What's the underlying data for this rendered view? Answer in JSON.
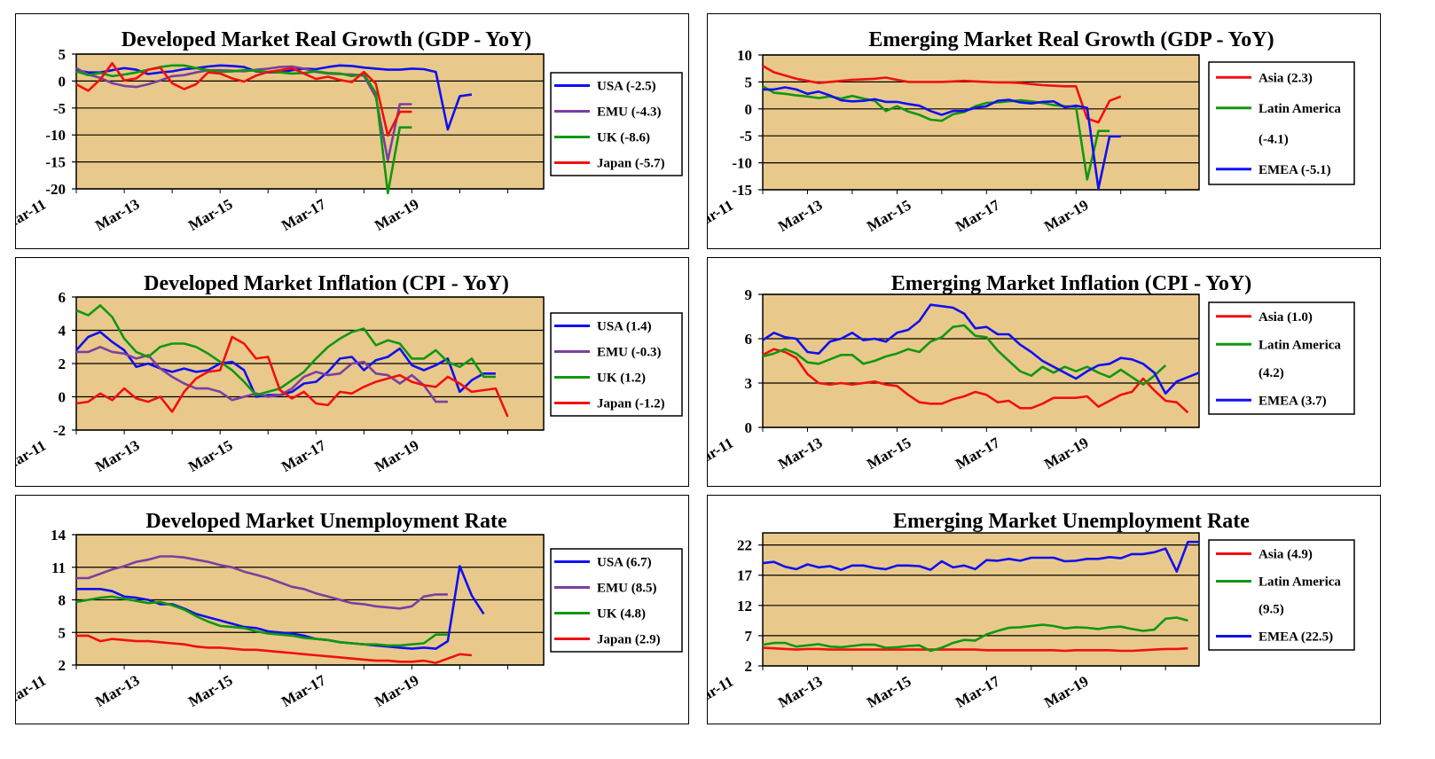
{
  "colors": {
    "plot_bg": "#E9C98B",
    "usa": "#1010F0",
    "emu": "#7B3FA0",
    "uk": "#109810",
    "japan": "#F01010",
    "asia": "#F01010",
    "latam": "#109810",
    "emea": "#1010F0"
  },
  "chart_data": [
    {
      "type": "line",
      "title": "Developed Market Real Growth (GDP - YoY)",
      "x_tick_labels": [
        "Mar-11",
        "Mar-13",
        "Mar-15",
        "Mar-17",
        "Mar-19"
      ],
      "n_points": 40,
      "ylim": [
        -20,
        5
      ],
      "yticks": [
        5,
        0,
        -5,
        -10,
        -15,
        -20
      ],
      "grid": true,
      "legend_position": "right",
      "series": [
        {
          "name": "USA (-2.5)",
          "color_key": "usa",
          "values": [
            2,
            1.6,
            1.6,
            2,
            2.4,
            2.1,
            1.3,
            1.6,
            1.8,
            2.2,
            2.4,
            2.7,
            2.9,
            2.8,
            2.6,
            1.8,
            1.6,
            1.6,
            2,
            2.3,
            2.2,
            2.6,
            2.9,
            2.8,
            2.5,
            2.3,
            2.1,
            2.1,
            2.3,
            2.2,
            1.7,
            -9,
            -2.8,
            -2.5
          ]
        },
        {
          "name": "EMU (-4.3)",
          "color_key": "emu",
          "values": [
            2.4,
            1.2,
            0.6,
            -0.4,
            -0.9,
            -1.1,
            -0.6,
            0.1,
            0.9,
            1.1,
            1.6,
            2,
            2,
            1.9,
            1.8,
            2.1,
            2.3,
            2.6,
            2.7,
            2.3,
            1.7,
            1.4,
            1.3,
            1.2,
            1,
            -3,
            -14.7,
            -4.3,
            -4.3
          ]
        },
        {
          "name": "UK (-8.6)",
          "color_key": "uk",
          "values": [
            1.8,
            1.1,
            1.5,
            0.9,
            1.2,
            1.6,
            2.1,
            2.6,
            2.9,
            2.9,
            2.4,
            2,
            1.7,
            1.8,
            2,
            1.9,
            1.7,
            1.6,
            1.4,
            1.5,
            1.8,
            1.5,
            1.4,
            0.9,
            1.3,
            -2.2,
            -20.8,
            -8.6,
            -8.6
          ]
        },
        {
          "name": "Japan (-5.7)",
          "color_key": "japan",
          "values": [
            -0.6,
            -1.8,
            0.3,
            3.3,
            0.1,
            0.5,
            2.1,
            2.5,
            -0.4,
            -1.5,
            -0.6,
            1.6,
            1.4,
            0.5,
            -0.1,
            1,
            1.7,
            2,
            2.4,
            1.4,
            0.4,
            0.8,
            0.2,
            -0.2,
            1.7,
            -0.5,
            -10.1,
            -5.7,
            -5.7
          ]
        }
      ]
    },
    {
      "type": "line",
      "title": "Emerging Market Real Growth (GDP - YoY)",
      "x_tick_labels": [
        "Mar-11",
        "Mar-13",
        "Mar-15",
        "Mar-17",
        "Mar-19"
      ],
      "n_points": 40,
      "ylim": [
        -15,
        10
      ],
      "yticks": [
        10,
        5,
        0,
        -5,
        -10,
        -15
      ],
      "grid": true,
      "legend_position": "right",
      "series": [
        {
          "name": "Asia (2.3)",
          "color_key": "asia",
          "values": [
            8,
            6.8,
            6.2,
            5.6,
            5.2,
            4.8,
            5,
            5.2,
            5.4,
            5.5,
            5.6,
            5.8,
            5.4,
            5,
            5,
            5,
            5,
            5.1,
            5.2,
            5.1,
            5,
            4.9,
            4.9,
            4.8,
            4.6,
            4.4,
            4.3,
            4.2,
            4.2,
            -1.8,
            -2.5,
            1.5,
            2.3
          ]
        },
        {
          "name": "Latin America (-4.1)",
          "color_key": "latam",
          "values": [
            4.2,
            3,
            2.8,
            2.5,
            2.3,
            2,
            2.3,
            1.9,
            2.4,
            1.9,
            1.5,
            -0.4,
            0.5,
            -0.5,
            -1.1,
            -2,
            -2.2,
            -1,
            -0.6,
            0.5,
            1.1,
            1.2,
            1.4,
            1.6,
            1.4,
            1.1,
            0.7,
            0.5,
            0.4,
            -13.1,
            -4.1,
            -4.1
          ]
        },
        {
          "name": "EMEA (-5.1)",
          "color_key": "emea",
          "values": [
            3.6,
            3.6,
            4,
            3.6,
            2.8,
            3.2,
            2.5,
            1.6,
            1.4,
            1.5,
            1.8,
            1.3,
            1.3,
            0.9,
            0.6,
            -0.4,
            -1.1,
            -0.4,
            -0.4,
            0.2,
            0.5,
            1.5,
            1.7,
            1.2,
            1,
            1.3,
            1.4,
            0.3,
            0.6,
            0.2,
            -14.8,
            -5.1,
            -5.1
          ]
        }
      ]
    },
    {
      "type": "line",
      "title": "Developed Market Inflation (CPI - YoY)",
      "x_tick_labels": [
        "Mar-11",
        "Mar-13",
        "Mar-15",
        "Mar-17",
        "Mar-19"
      ],
      "n_points": 40,
      "ylim": [
        -2,
        6
      ],
      "yticks": [
        6,
        4,
        2,
        0,
        -2
      ],
      "grid": true,
      "legend_position": "right",
      "series": [
        {
          "name": "USA (1.4)",
          "color_key": "usa",
          "values": [
            2.8,
            3.6,
            3.9,
            3.3,
            2.8,
            1.8,
            2,
            1.7,
            1.5,
            1.7,
            1.5,
            1.6,
            2,
            2.1,
            1.6,
            0,
            0.1,
            0.1,
            0.3,
            0.8,
            0.9,
            1.5,
            2.3,
            2.4,
            1.6,
            2.2,
            2.4,
            2.9,
            1.9,
            1.6,
            1.9,
            2.3,
            0.3,
            1,
            1.4,
            1.4
          ]
        },
        {
          "name": "EMU (-0.3)",
          "color_key": "emu",
          "values": [
            2.7,
            2.7,
            3,
            2.7,
            2.6,
            2.3,
            2.5,
            1.7,
            1.2,
            0.8,
            0.5,
            0.5,
            0.3,
            -0.2,
            0,
            0.2,
            0,
            0.1,
            0.5,
            1.2,
            1.5,
            1.3,
            1.4,
            2,
            2.1,
            1.4,
            1.3,
            0.8,
            1.3,
            0.7,
            -0.3,
            -0.3
          ]
        },
        {
          "name": "UK (1.2)",
          "color_key": "uk",
          "values": [
            5.2,
            4.9,
            5.5,
            4.8,
            3.5,
            2.7,
            2.4,
            3,
            3.2,
            3.2,
            3,
            2.6,
            2.1,
            1.6,
            0.9,
            0.1,
            0.3,
            0.5,
            1,
            1.5,
            2.3,
            3,
            3.5,
            3.9,
            4.1,
            3.1,
            3.4,
            3.2,
            2.3,
            2.3,
            2.8,
            2.1,
            1.8,
            2.3,
            1.2,
            1.2
          ]
        },
        {
          "name": "Japan (-1.2)",
          "color_key": "japan",
          "values": [
            -0.4,
            -0.3,
            0.2,
            -0.2,
            0.5,
            -0.1,
            -0.3,
            0,
            -0.9,
            0.3,
            1.1,
            1.5,
            1.6,
            3.6,
            3.2,
            2.3,
            2.4,
            0.4,
            -0.1,
            0.3,
            -0.4,
            -0.5,
            0.3,
            0.2,
            0.6,
            0.9,
            1.1,
            1.3,
            0.9,
            0.7,
            0.6,
            1.2,
            0.8,
            0.3,
            0.4,
            0.5,
            -1.2
          ]
        }
      ]
    },
    {
      "type": "line",
      "title": "Emerging Market Inflation (CPI - YoY)",
      "x_tick_labels": [
        "Mar-11",
        "Mar-13",
        "Mar-15",
        "Mar-17",
        "Mar-19"
      ],
      "n_points": 40,
      "ylim": [
        0,
        9
      ],
      "yticks": [
        9,
        6,
        3,
        0
      ],
      "grid": true,
      "legend_position": "right",
      "series": [
        {
          "name": "Asia (1.0)",
          "color_key": "asia",
          "values": [
            4.9,
            5.3,
            5.1,
            4.7,
            3.6,
            3,
            2.9,
            3,
            2.9,
            3,
            3.1,
            2.9,
            2.8,
            2.2,
            1.7,
            1.6,
            1.6,
            1.9,
            2.1,
            2.4,
            2.2,
            1.7,
            1.8,
            1.3,
            1.3,
            1.6,
            2,
            2,
            2,
            2.1,
            1.4,
            1.8,
            2.2,
            2.4,
            3.3,
            2.5,
            1.8,
            1.7,
            1
          ]
        },
        {
          "name": "Latin America (4.2)",
          "color_key": "latam",
          "values": [
            4.8,
            5,
            5.3,
            5,
            4.4,
            4.3,
            4.6,
            4.9,
            4.9,
            4.3,
            4.5,
            4.8,
            5,
            5.3,
            5.1,
            5.8,
            6.1,
            6.8,
            6.9,
            6.2,
            6.1,
            5.2,
            4.5,
            3.8,
            3.5,
            4.1,
            3.7,
            4.1,
            3.8,
            4.1,
            3.7,
            3.4,
            3.9,
            3.4,
            2.9,
            3.5,
            4.2
          ]
        },
        {
          "name": "EMEA (3.7)",
          "color_key": "emea",
          "values": [
            5.9,
            6.4,
            6.1,
            6,
            5.1,
            5,
            5.8,
            6,
            6.4,
            5.9,
            6,
            5.8,
            6.4,
            6.6,
            7.2,
            8.3,
            8.2,
            8.1,
            7.7,
            6.7,
            6.8,
            6.3,
            6.3,
            5.6,
            5.1,
            4.5,
            4.1,
            3.7,
            3.3,
            3.8,
            4.2,
            4.3,
            4.7,
            4.6,
            4.3,
            3.7,
            2.3,
            3.1,
            3.4,
            3.7
          ]
        }
      ]
    },
    {
      "type": "line",
      "title": "Developed Market Unemployment Rate",
      "x_tick_labels": [
        "Mar-11",
        "Mar-13",
        "Mar-15",
        "Mar-17",
        "Mar-19"
      ],
      "n_points": 40,
      "ylim": [
        2,
        14
      ],
      "yticks": [
        14,
        11,
        8,
        5,
        2
      ],
      "grid": true,
      "legend_position": "right",
      "series": [
        {
          "name": "USA (6.7)",
          "color_key": "usa",
          "values": [
            9,
            9,
            9,
            8.8,
            8.3,
            8.2,
            8,
            7.6,
            7.6,
            7.2,
            6.7,
            6.4,
            6.1,
            5.8,
            5.5,
            5.4,
            5.1,
            5,
            4.9,
            4.7,
            4.4,
            4.3,
            4.1,
            4,
            3.9,
            3.8,
            3.7,
            3.6,
            3.5,
            3.6,
            3.5,
            4.2,
            11.1,
            8.4,
            6.7
          ]
        },
        {
          "name": "EMU (8.5)",
          "color_key": "emu",
          "values": [
            10,
            10,
            10.4,
            10.8,
            11.1,
            11.5,
            11.7,
            12,
            12,
            11.9,
            11.7,
            11.5,
            11.2,
            11,
            10.6,
            10.3,
            10,
            9.6,
            9.2,
            9,
            8.6,
            8.3,
            8,
            7.7,
            7.6,
            7.4,
            7.3,
            7.2,
            7.4,
            8.3,
            8.5,
            8.5
          ]
        },
        {
          "name": "UK (4.8)",
          "color_key": "uk",
          "values": [
            7.8,
            8,
            8.2,
            8.3,
            8.1,
            7.9,
            7.7,
            7.8,
            7.5,
            7.1,
            6.5,
            6,
            5.6,
            5.5,
            5.4,
            5.1,
            4.9,
            4.8,
            4.7,
            4.5,
            4.4,
            4.3,
            4.1,
            4,
            3.9,
            3.9,
            3.8,
            3.8,
            3.9,
            4,
            4.8,
            4.8
          ]
        },
        {
          "name": "Japan (2.9)",
          "color_key": "japan",
          "values": [
            4.7,
            4.7,
            4.2,
            4.4,
            4.3,
            4.2,
            4.2,
            4.1,
            4,
            3.9,
            3.7,
            3.6,
            3.6,
            3.5,
            3.4,
            3.4,
            3.3,
            3.2,
            3.1,
            3,
            2.9,
            2.8,
            2.7,
            2.6,
            2.5,
            2.4,
            2.4,
            2.3,
            2.3,
            2.4,
            2.2,
            2.6,
            3,
            2.9
          ]
        }
      ]
    },
    {
      "type": "line",
      "title": "Emerging Market Unemployment Rate",
      "x_tick_labels": [
        "Mar-11",
        "Mar-13",
        "Mar-15",
        "Mar-17",
        "Mar-19"
      ],
      "n_points": 40,
      "ylim": [
        2,
        24
      ],
      "yticks": [
        22,
        17,
        12,
        7,
        2
      ],
      "grid": true,
      "legend_position": "right",
      "series": [
        {
          "name": "Asia (4.9)",
          "color_key": "asia",
          "values": [
            5,
            4.9,
            4.8,
            4.7,
            4.8,
            4.8,
            4.7,
            4.7,
            4.7,
            4.7,
            4.7,
            4.7,
            4.7,
            4.7,
            4.7,
            4.7,
            4.7,
            4.7,
            4.7,
            4.7,
            4.6,
            4.6,
            4.6,
            4.6,
            4.6,
            4.6,
            4.6,
            4.5,
            4.6,
            4.6,
            4.6,
            4.6,
            4.5,
            4.5,
            4.6,
            4.7,
            4.8,
            4.8,
            4.9
          ]
        },
        {
          "name": "Latin America (9.5)",
          "color_key": "latam",
          "values": [
            5.5,
            5.8,
            5.8,
            5.2,
            5.4,
            5.6,
            5.2,
            5.1,
            5.3,
            5.5,
            5.5,
            5,
            5.1,
            5.3,
            5.4,
            4.5,
            5,
            5.8,
            6.3,
            6.2,
            7.2,
            7.8,
            8.3,
            8.4,
            8.6,
            8.8,
            8.6,
            8.2,
            8.4,
            8.3,
            8.1,
            8.4,
            8.5,
            8.1,
            7.8,
            8,
            9.8,
            10,
            9.5
          ]
        },
        {
          "name": "EMEA (22.5)",
          "color_key": "emea",
          "values": [
            19,
            19.2,
            18.4,
            18,
            18.8,
            18.3,
            18.5,
            17.9,
            18.6,
            18.6,
            18.2,
            18,
            18.6,
            18.6,
            18.5,
            17.9,
            19.3,
            18.3,
            18.6,
            18,
            19.5,
            19.4,
            19.7,
            19.4,
            19.9,
            19.9,
            19.9,
            19.3,
            19.4,
            19.7,
            19.7,
            20,
            19.8,
            20.5,
            20.5,
            20.8,
            21.4,
            17.6,
            22.5,
            22.5
          ]
        }
      ]
    }
  ]
}
